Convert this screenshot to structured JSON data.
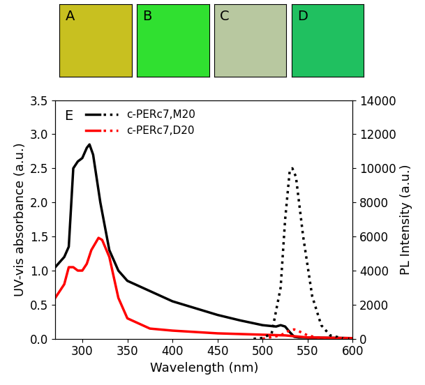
{
  "panels": [
    "A",
    "B",
    "C",
    "D"
  ],
  "chart_data": {
    "type": "line",
    "annotations": [
      "E"
    ],
    "x_label": "Wavelength (nm)",
    "y_label": "UV-vis absorbance (a.u.)",
    "y2_label": "PL Intensity (a.u.)",
    "xlim": [
      270,
      600
    ],
    "xticks": [
      300,
      350,
      400,
      450,
      500,
      550,
      600
    ],
    "ylim": [
      0.0,
      3.5
    ],
    "yticks": [
      0.0,
      0.5,
      1.0,
      1.5,
      2.0,
      2.5,
      3.0,
      3.5
    ],
    "y2lim": [
      0,
      14000
    ],
    "y2ticks": [
      0,
      2000,
      4000,
      6000,
      8000,
      10000,
      12000,
      14000
    ],
    "legend": "upper left",
    "series": [
      {
        "name": "c-PERc7,M20",
        "color": "#000000",
        "line_style": "solid",
        "x": [
          270,
          280,
          285,
          290,
          295,
          300,
          305,
          308,
          312,
          320,
          330,
          340,
          350,
          375,
          400,
          425,
          450,
          475,
          500,
          515,
          520,
          525,
          530,
          535,
          540,
          600
        ],
        "values": [
          1.05,
          1.2,
          1.35,
          2.5,
          2.6,
          2.65,
          2.8,
          2.85,
          2.7,
          2.0,
          1.3,
          1.0,
          0.85,
          0.7,
          0.55,
          0.45,
          0.35,
          0.27,
          0.2,
          0.18,
          0.2,
          0.18,
          0.1,
          0.03,
          0.02,
          0.01
        ]
      },
      {
        "name": "c-PERc7,M20",
        "color": "#000000",
        "line_style": "dotted",
        "axis": "y2",
        "x": [
          490,
          500,
          510,
          520,
          525,
          530,
          533,
          537,
          545,
          555,
          565,
          575,
          590,
          600
        ],
        "values": [
          0,
          50,
          300,
          3000,
          7000,
          9800,
          10000,
          9500,
          6000,
          2500,
          800,
          200,
          20,
          0
        ]
      },
      {
        "name": "c-PERc7,D20",
        "color": "#ff0000",
        "line_style": "solid",
        "x": [
          270,
          280,
          285,
          290,
          295,
          300,
          305,
          310,
          318,
          322,
          330,
          340,
          350,
          375,
          400,
          450,
          500,
          525,
          550,
          600
        ],
        "values": [
          0.6,
          0.8,
          1.05,
          1.05,
          1.0,
          1.0,
          1.1,
          1.3,
          1.48,
          1.45,
          1.2,
          0.6,
          0.3,
          0.15,
          0.12,
          0.08,
          0.06,
          0.05,
          0.02,
          0.01
        ]
      },
      {
        "name": "c-PERc7,D20",
        "color": "#ff0000",
        "line_style": "dotted",
        "axis": "y2",
        "x": [
          500,
          520,
          530,
          535,
          540,
          550,
          560,
          575,
          600
        ],
        "values": [
          0,
          200,
          500,
          550,
          450,
          200,
          80,
          10,
          0
        ]
      }
    ]
  }
}
